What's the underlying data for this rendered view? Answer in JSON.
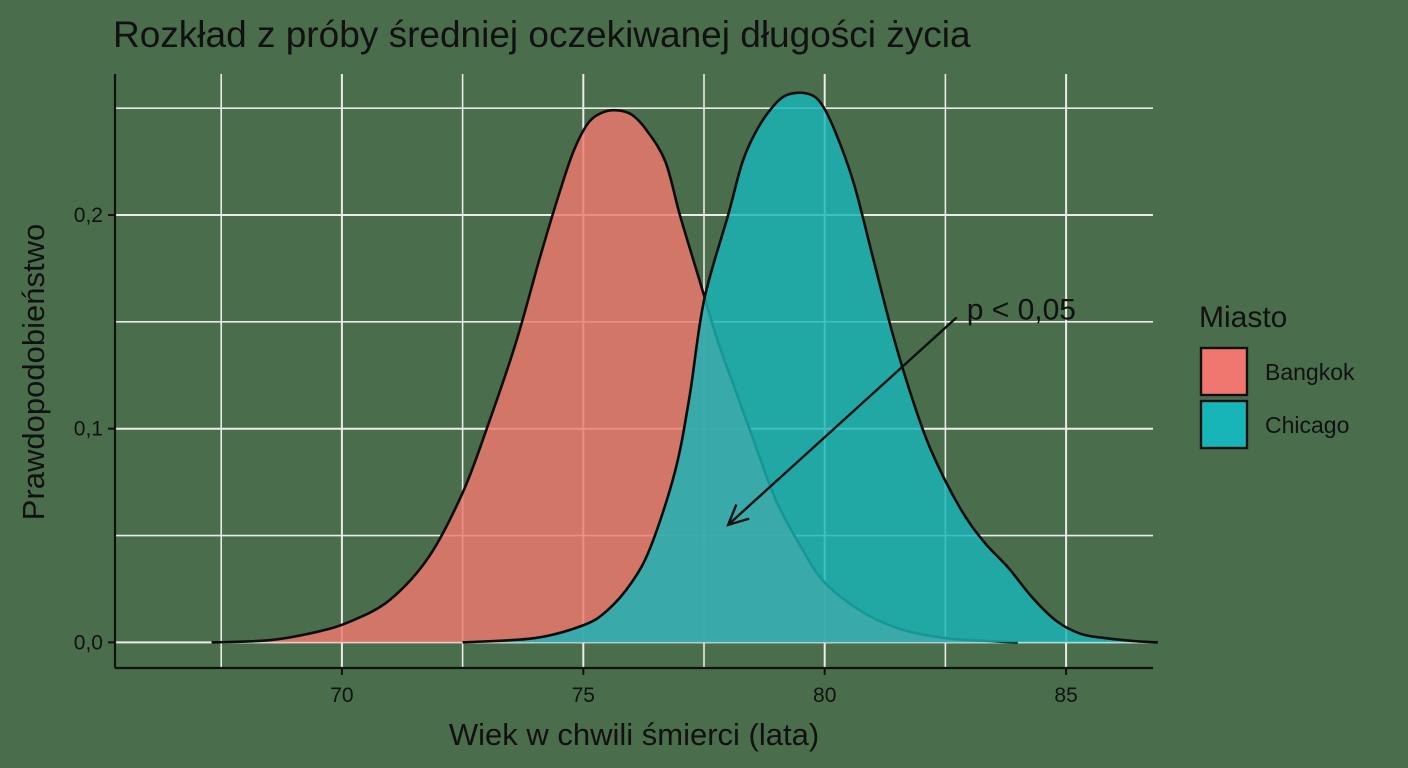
{
  "chart_data": {
    "type": "area",
    "title": "Rozkład z próby średniej oczekiwanej długości życia",
    "xlabel": "Wiek w chwili śmierci (lata)",
    "ylabel": "Prawdopodobieństwo",
    "xlim": [
      65.3,
      86.8
    ],
    "ylim": [
      -0.012,
      0.266
    ],
    "x_ticks": [
      70,
      75,
      80,
      85
    ],
    "x_tick_labels": [
      "70",
      "75",
      "80",
      "85"
    ],
    "y_ticks": [
      0.0,
      0.1,
      0.2
    ],
    "y_tick_labels": [
      "0,0",
      "0,1",
      "0,2"
    ],
    "grid": true,
    "legend": {
      "title": "Miasto",
      "position": "right"
    },
    "series": [
      {
        "name": "Bangkok",
        "color": "#f0776f",
        "x": [
          67.3,
          68.5,
          69.5,
          70.2,
          71.0,
          71.8,
          72.5,
          73.0,
          73.6,
          74.1,
          74.5,
          74.8,
          75.1,
          75.4,
          75.7,
          76.0,
          76.3,
          76.7,
          77.0,
          77.4,
          77.8,
          78.2,
          78.6,
          79.0,
          79.5,
          80.0,
          80.8,
          81.6,
          82.5,
          83.5,
          84.0
        ],
        "values": [
          0.0,
          0.001,
          0.005,
          0.01,
          0.02,
          0.04,
          0.07,
          0.1,
          0.14,
          0.18,
          0.21,
          0.23,
          0.243,
          0.248,
          0.249,
          0.247,
          0.24,
          0.225,
          0.2,
          0.17,
          0.14,
          0.115,
          0.09,
          0.066,
          0.045,
          0.028,
          0.014,
          0.006,
          0.002,
          0.0005,
          0.0
        ]
      },
      {
        "name": "Chicago",
        "color": "#18b5b8",
        "x": [
          72.5,
          74.0,
          75.0,
          75.5,
          76.0,
          76.4,
          76.9,
          77.2,
          77.5,
          78.0,
          78.3,
          78.6,
          78.9,
          79.2,
          79.6,
          79.9,
          80.2,
          80.6,
          81.0,
          81.4,
          81.8,
          82.2,
          82.8,
          83.3,
          83.8,
          84.3,
          84.8,
          85.3,
          85.8,
          86.4,
          86.9
        ],
        "values": [
          0.0,
          0.002,
          0.008,
          0.015,
          0.028,
          0.045,
          0.08,
          0.115,
          0.16,
          0.2,
          0.225,
          0.24,
          0.25,
          0.256,
          0.257,
          0.253,
          0.24,
          0.215,
          0.18,
          0.145,
          0.115,
          0.09,
          0.063,
          0.047,
          0.035,
          0.021,
          0.01,
          0.004,
          0.002,
          0.0006,
          0.0
        ]
      }
    ],
    "annotations": [
      {
        "text": "p < 0,05",
        "x": 82.9,
        "y": 0.153,
        "arrow_to": [
          78.0,
          0.055
        ]
      }
    ]
  }
}
